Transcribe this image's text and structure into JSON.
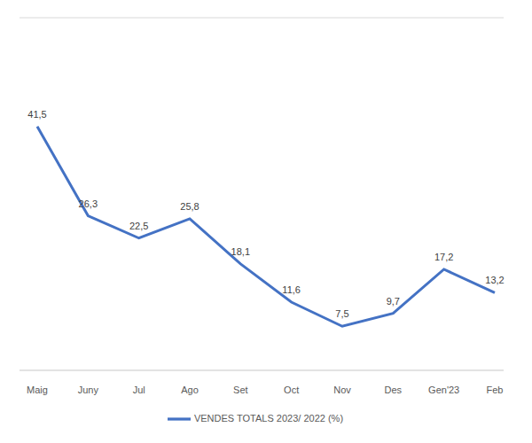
{
  "chart_data": {
    "type": "line",
    "categories": [
      "Maig",
      "Juny",
      "Jul",
      "Ago",
      "Set",
      "Oct",
      "Nov",
      "Des",
      "Gen'23",
      "Feb"
    ],
    "series": [
      {
        "name": "VENDES TOTALS 2023/ 2022 (%)",
        "color": "#4472c4",
        "values": [
          41.5,
          26.3,
          22.5,
          25.8,
          18.1,
          11.6,
          7.5,
          9.7,
          17.2,
          13.2
        ],
        "value_labels": [
          "41,5",
          "26,3",
          "22,5",
          "25,8",
          "18,1",
          "11,6",
          "7,5",
          "9,7",
          "17,2",
          "13,2"
        ]
      }
    ],
    "ylim": [
      0,
      60
    ],
    "yticks": [
      0,
      10,
      20,
      30,
      40,
      50,
      60
    ],
    "grid": true,
    "data_labels": true,
    "tick_labels": "x",
    "legend": "bottom"
  }
}
